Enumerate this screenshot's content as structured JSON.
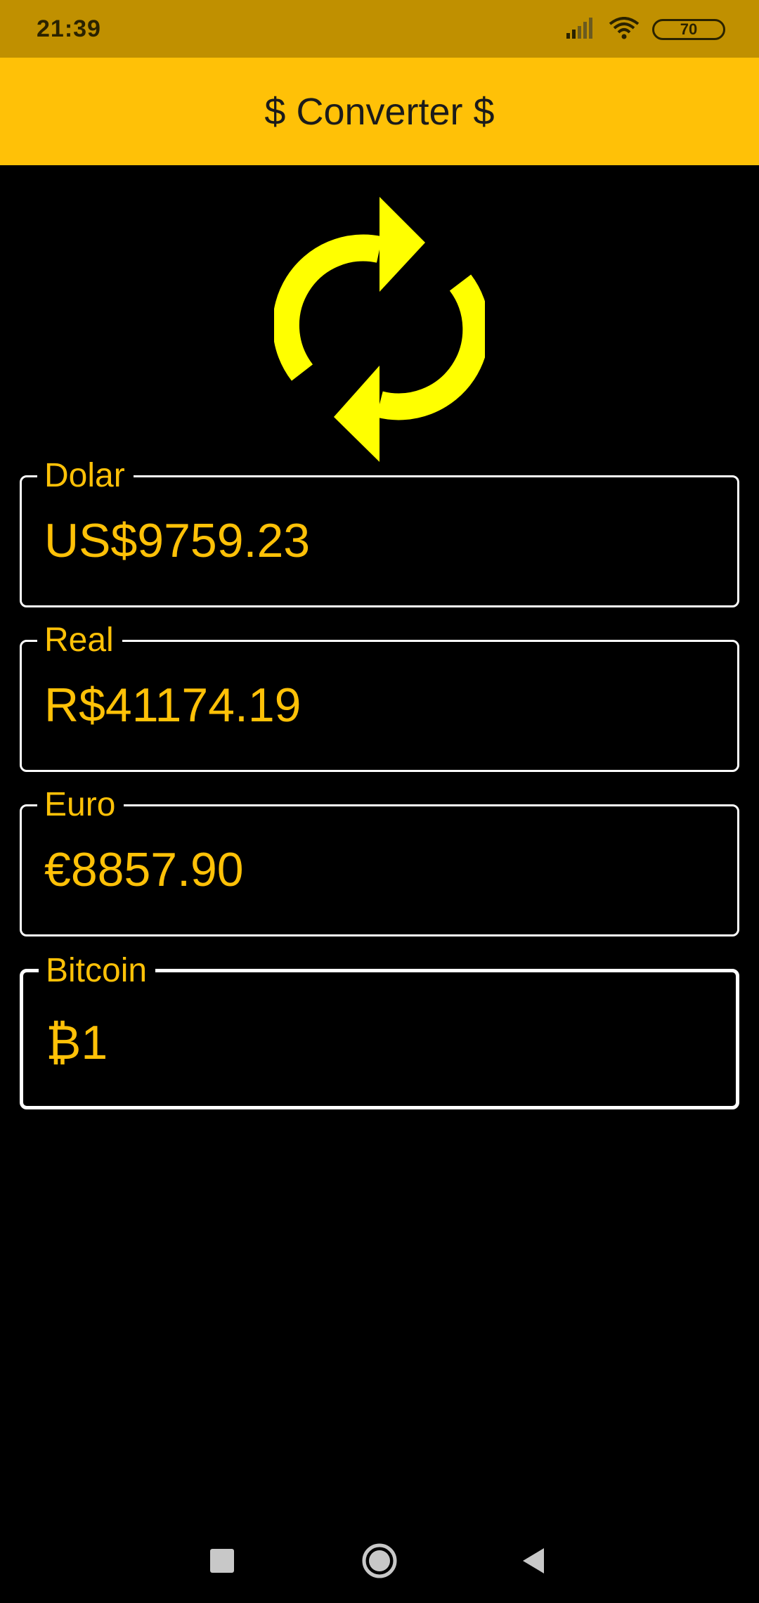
{
  "status_bar": {
    "time": "21:39",
    "battery": "70",
    "icons": [
      "signal-icon",
      "wifi-icon",
      "battery-icon"
    ]
  },
  "app_bar": {
    "title": "$ Converter $",
    "color": "#FFC107"
  },
  "refresh": {
    "icon": "refresh-icon",
    "color": "#FFFF00"
  },
  "fields": {
    "dolar": {
      "label": "Dolar",
      "value": "US$9759.23"
    },
    "real": {
      "label": "Real",
      "value": "R$41174.19"
    },
    "euro": {
      "label": "Euro",
      "value": "€8857.90"
    },
    "bitcoin": {
      "label": "Bitcoin",
      "value": "₿1",
      "focused": true
    }
  },
  "nav_bar": {
    "icons": [
      "recents-icon",
      "home-icon",
      "back-icon"
    ]
  }
}
